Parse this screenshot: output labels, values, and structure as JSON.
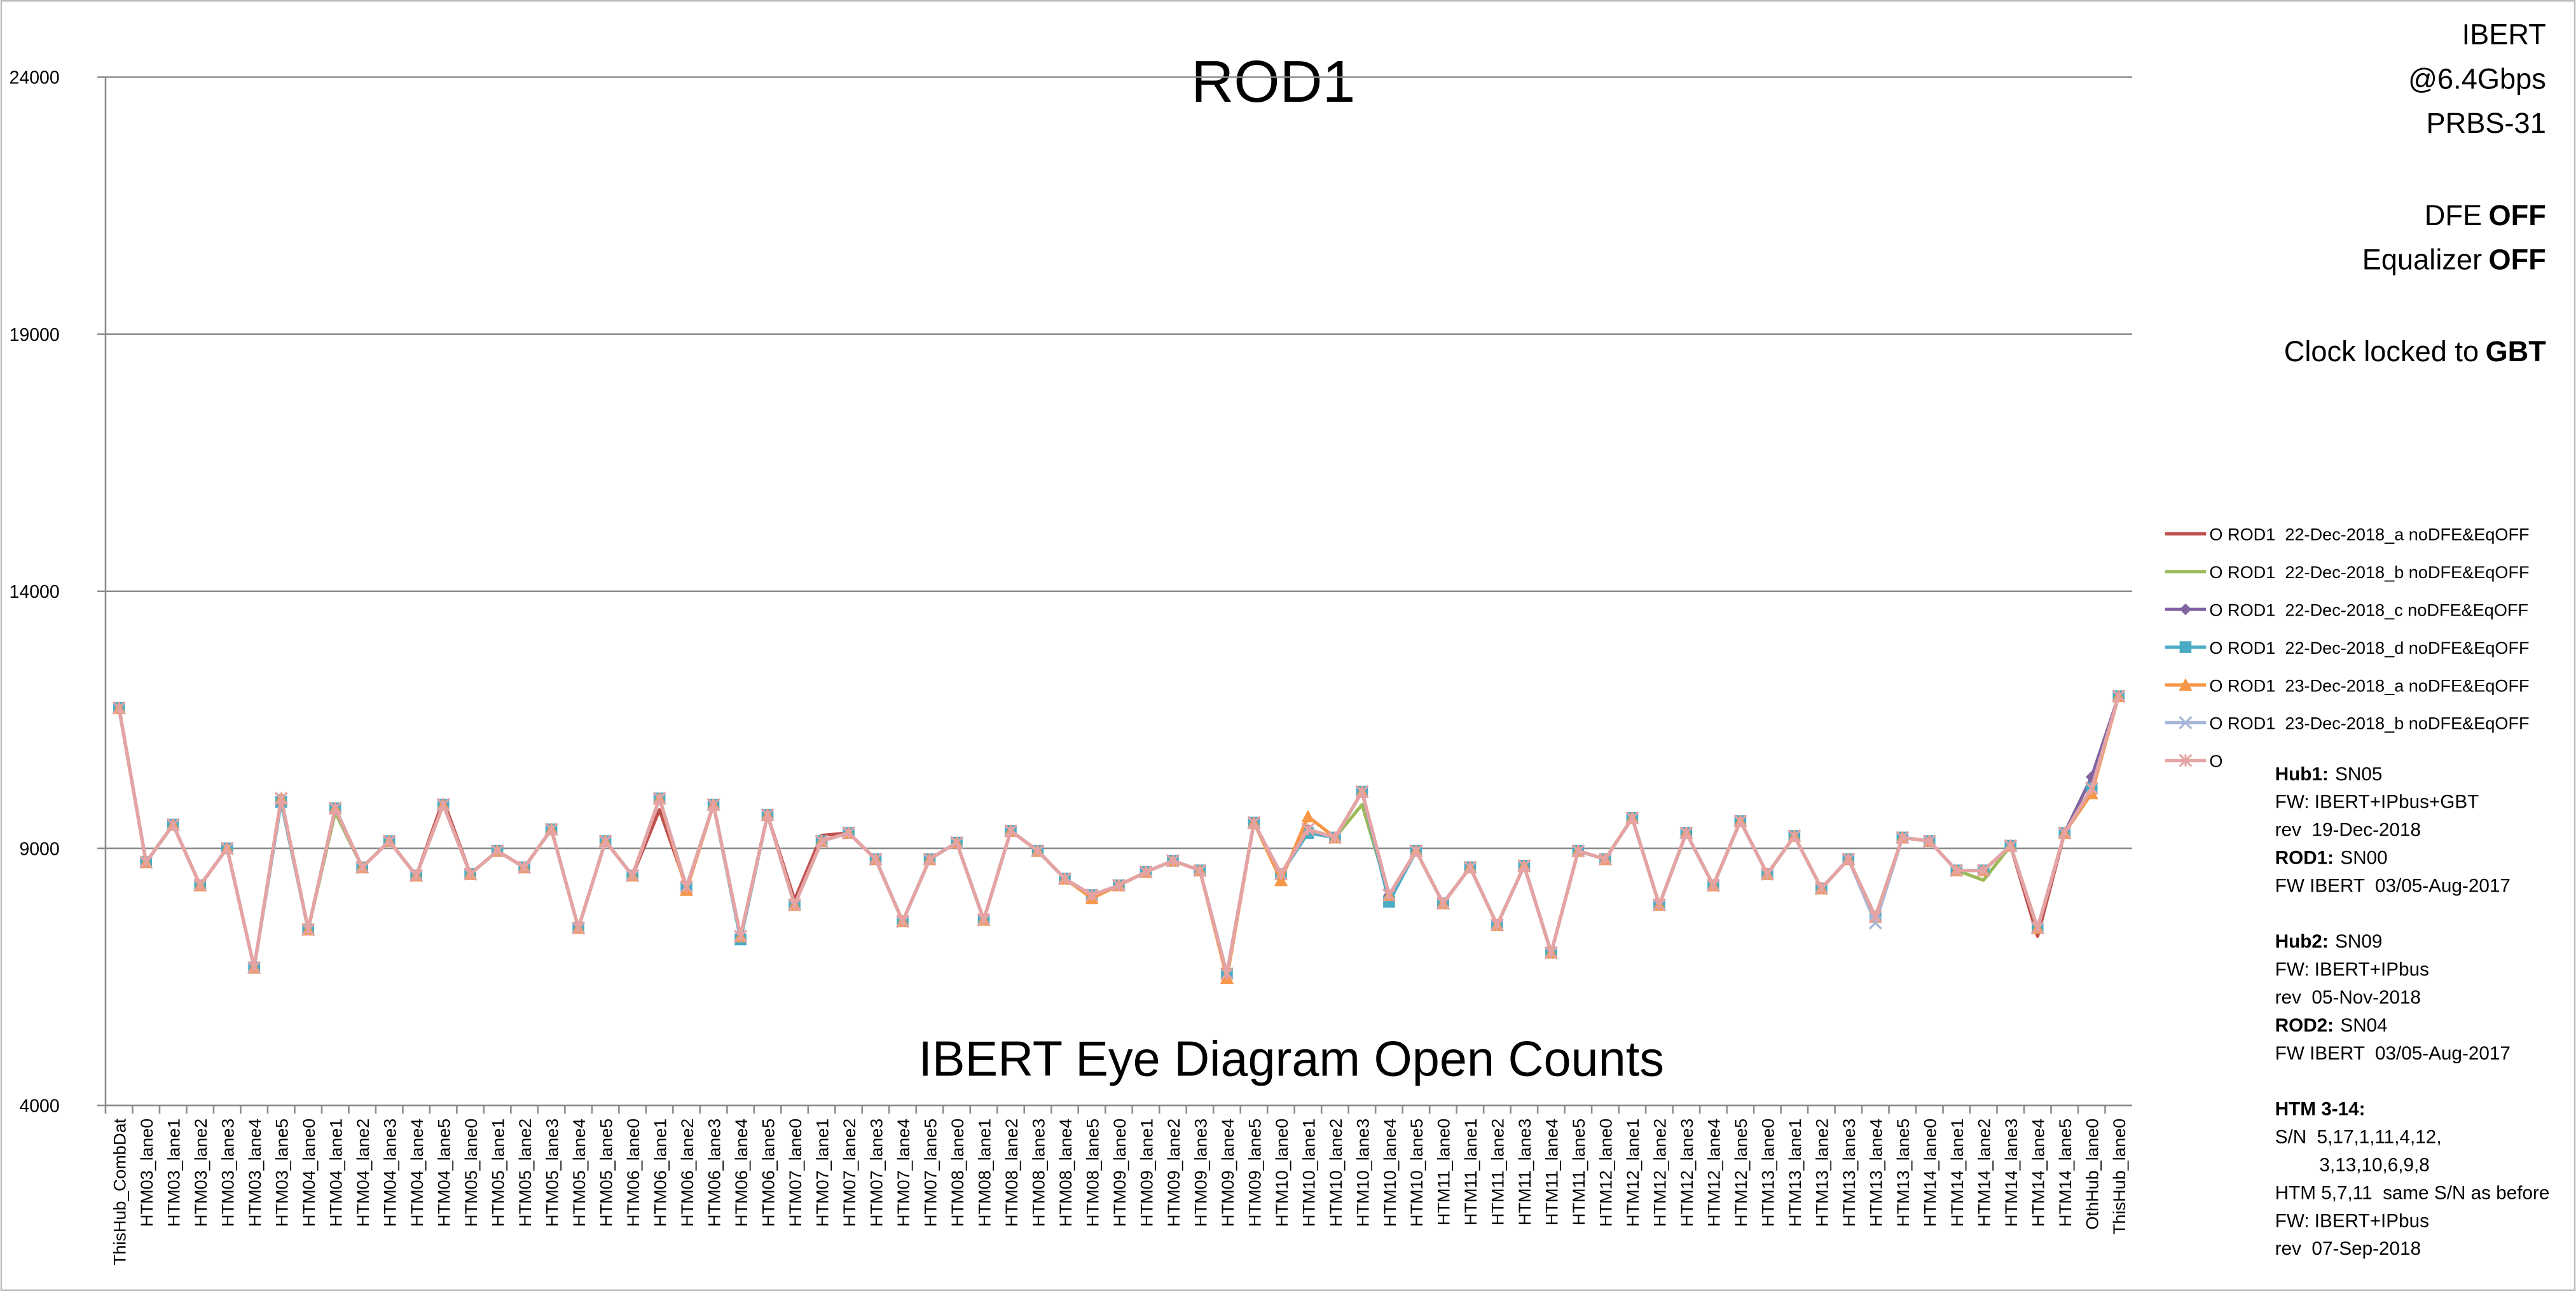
{
  "chart_data": {
    "type": "line",
    "title": "ROD1",
    "subtitle": "IBERT Eye Diagram Open Counts",
    "categories": [
      "ThisHub_CombDat",
      "HTM03_lane0",
      "HTM03_lane1",
      "HTM03_lane2",
      "HTM03_lane3",
      "HTM03_lane4",
      "HTM03_lane5",
      "HTM04_lane0",
      "HTM04_lane1",
      "HTM04_lane2",
      "HTM04_lane3",
      "HTM04_lane4",
      "HTM04_lane5",
      "HTM05_lane0",
      "HTM05_lane1",
      "HTM05_lane2",
      "HTM05_lane3",
      "HTM05_lane4",
      "HTM05_lane5",
      "HTM06_lane0",
      "HTM06_lane1",
      "HTM06_lane2",
      "HTM06_lane3",
      "HTM06_lane4",
      "HTM06_lane5",
      "HTM07_lane0",
      "HTM07_lane1",
      "HTM07_lane2",
      "HTM07_lane3",
      "HTM07_lane4",
      "HTM07_lane5",
      "HTM08_lane0",
      "HTM08_lane1",
      "HTM08_lane2",
      "HTM08_lane3",
      "HTM08_lane4",
      "HTM08_lane5",
      "HTM09_lane0",
      "HTM09_lane1",
      "HTM09_lane2",
      "HTM09_lane3",
      "HTM09_lane4",
      "HTM09_lane5",
      "HTM10_lane0",
      "HTM10_lane1",
      "HTM10_lane2",
      "HTM10_lane3",
      "HTM10_lane4",
      "HTM10_lane5",
      "HTM11_lane0",
      "HTM11_lane1",
      "HTM11_lane2",
      "HTM11_lane3",
      "HTM11_lane4",
      "HTM11_lane5",
      "HTM12_lane0",
      "HTM12_lane1",
      "HTM12_lane2",
      "HTM12_lane3",
      "HTM12_lane4",
      "HTM12_lane5",
      "HTM13_lane0",
      "HTM13_lane1",
      "HTM13_lane2",
      "HTM13_lane3",
      "HTM13_lane4",
      "HTM13_lane5",
      "HTM14_lane0",
      "HTM14_lane1",
      "HTM14_lane2",
      "HTM14_lane3",
      "HTM14_lane4",
      "HTM14_lane5",
      "OthHub_lane0",
      "ThisHub_lane0"
    ],
    "series": [
      {
        "name": "O ROD1  22-Dec-2018_a noDFE&EqOFF",
        "color": "#c0504d",
        "marker": "none",
        "values": [
          11730,
          8730,
          9460,
          8280,
          9000,
          6680,
          9970,
          7420,
          9780,
          8630,
          9140,
          8470,
          9940,
          8500,
          8950,
          8630,
          9370,
          7450,
          9140,
          8470,
          9750,
          8250,
          9850,
          7290,
          9650,
          8000,
          9250,
          9300,
          8790,
          7580,
          8790,
          9110,
          7610,
          9340,
          8950,
          8410,
          8090,
          8280,
          8540,
          8760,
          8570,
          6560,
          9500,
          8500,
          9370,
          9210,
          10100,
          8090,
          8950,
          7930,
          8630,
          7510,
          8660,
          6970,
          8950,
          8790,
          9590,
          7900,
          9300,
          8280,
          9530,
          8500,
          9240,
          8220,
          8790,
          7670,
          9210,
          9140,
          8570,
          8570,
          9050,
          7290,
          9300,
          10170,
          11960
        ]
      },
      {
        "name": "O ROD1  22-Dec-2018_b noDFE&EqOFF",
        "color": "#9bbb59",
        "marker": "none",
        "values": [
          11730,
          8730,
          9460,
          8280,
          9000,
          6680,
          9970,
          7420,
          9700,
          8630,
          9140,
          8470,
          9850,
          8500,
          8950,
          8630,
          9370,
          7450,
          9140,
          8470,
          9970,
          8250,
          9850,
          7290,
          9650,
          7900,
          9140,
          9300,
          8790,
          7580,
          8790,
          9110,
          7610,
          9340,
          8950,
          8410,
          8090,
          8280,
          8540,
          8760,
          8570,
          6560,
          9500,
          8500,
          9370,
          9210,
          9850,
          8090,
          8950,
          7930,
          8630,
          7510,
          8660,
          6970,
          8950,
          8790,
          9590,
          7900,
          9300,
          8280,
          9530,
          8500,
          9240,
          8220,
          8790,
          7670,
          9210,
          9140,
          8570,
          8380,
          9050,
          7450,
          9300,
          10170,
          11960
        ]
      },
      {
        "name": "O ROD1  22-Dec-2018_c noDFE&EqOFF",
        "color": "#8064a2",
        "marker": "diamond",
        "values": [
          11730,
          8730,
          9460,
          8280,
          9000,
          6680,
          9970,
          7420,
          9780,
          8630,
          9140,
          8470,
          9850,
          8500,
          8950,
          8630,
          9370,
          7450,
          9140,
          8470,
          9970,
          8250,
          9850,
          7290,
          9650,
          7900,
          9140,
          9300,
          8790,
          7580,
          8790,
          9110,
          7610,
          9340,
          8950,
          8410,
          8090,
          8280,
          8540,
          8760,
          8570,
          6560,
          9500,
          8500,
          9370,
          9210,
          10100,
          8090,
          8950,
          7930,
          8630,
          7510,
          8660,
          6970,
          8950,
          8790,
          9590,
          7900,
          9300,
          8280,
          9530,
          8500,
          9240,
          8220,
          8790,
          7670,
          9210,
          9140,
          8570,
          8570,
          9050,
          7450,
          9300,
          10390,
          11960
        ]
      },
      {
        "name": "O ROD1  22-Dec-2018_d noDFE&EqOFF",
        "color": "#4bacc6",
        "marker": "square",
        "values": [
          11730,
          8730,
          9460,
          8280,
          9000,
          6680,
          9900,
          7420,
          9780,
          8630,
          9140,
          8470,
          9850,
          8500,
          8950,
          8630,
          9370,
          7450,
          9140,
          8470,
          9970,
          8250,
          9850,
          7230,
          9650,
          7900,
          9140,
          9300,
          8790,
          7580,
          8790,
          9110,
          7610,
          9340,
          8950,
          8410,
          8090,
          8280,
          8540,
          8760,
          8570,
          6560,
          9500,
          8500,
          9300,
          9210,
          10100,
          7960,
          8950,
          7930,
          8630,
          7510,
          8660,
          6970,
          8950,
          8790,
          9590,
          7900,
          9300,
          8280,
          9530,
          8500,
          9240,
          8220,
          8790,
          7670,
          9210,
          9140,
          8570,
          8570,
          9050,
          7450,
          9300,
          10170,
          11960
        ]
      },
      {
        "name": "O ROD1  23-Dec-2018_a noDFE&EqOFF",
        "color": "#f79646",
        "marker": "triangle",
        "values": [
          11730,
          8730,
          9460,
          8280,
          9000,
          6680,
          9970,
          7420,
          9780,
          8630,
          9140,
          8470,
          9850,
          8500,
          8950,
          8630,
          9370,
          7450,
          9140,
          8470,
          9970,
          8190,
          9850,
          7290,
          9650,
          7900,
          9140,
          9300,
          8790,
          7580,
          8790,
          9110,
          7610,
          9340,
          8950,
          8410,
          8030,
          8280,
          8540,
          8760,
          8570,
          6480,
          9500,
          8380,
          9620,
          9210,
          10100,
          8090,
          8950,
          7930,
          8630,
          7510,
          8660,
          6970,
          8950,
          8790,
          9590,
          7900,
          9300,
          8280,
          9530,
          8500,
          9240,
          8220,
          8790,
          7670,
          9210,
          9140,
          8570,
          8570,
          9050,
          7450,
          9300,
          10070,
          11960
        ]
      },
      {
        "name": "O ROD1  23-Dec-2018_b noDFE&EqOFF",
        "color": "#a5b6d8",
        "marker": "x",
        "values": [
          11730,
          8730,
          9460,
          8280,
          9000,
          6680,
          9970,
          7420,
          9780,
          8630,
          9140,
          8470,
          9850,
          8500,
          8950,
          8630,
          9370,
          7450,
          9140,
          8470,
          9970,
          8250,
          9850,
          7290,
          9650,
          7900,
          9140,
          9300,
          8790,
          7580,
          8790,
          9110,
          7610,
          9340,
          8950,
          8410,
          8090,
          8280,
          8540,
          8760,
          8570,
          6560,
          9500,
          8500,
          9370,
          9210,
          10100,
          8090,
          8950,
          7930,
          8630,
          7510,
          8660,
          6970,
          8950,
          8790,
          9590,
          7900,
          9300,
          8280,
          9530,
          8500,
          9240,
          8220,
          8790,
          7550,
          9210,
          9140,
          8570,
          8570,
          9050,
          7450,
          9300,
          10170,
          11960
        ]
      },
      {
        "name": "O",
        "color": "#e6a3a3",
        "marker": "star",
        "values": [
          11730,
          8730,
          9460,
          8280,
          9000,
          6680,
          9970,
          7420,
          9780,
          8630,
          9140,
          8470,
          9850,
          8500,
          8950,
          8630,
          9370,
          7450,
          9140,
          8470,
          9970,
          8250,
          9850,
          7290,
          9650,
          7900,
          9140,
          9300,
          8790,
          7580,
          8790,
          9110,
          7610,
          9340,
          8950,
          8410,
          8090,
          8280,
          8540,
          8760,
          8570,
          6560,
          9500,
          8500,
          9370,
          9210,
          10100,
          8090,
          8950,
          7930,
          8630,
          7510,
          8660,
          6970,
          8950,
          8790,
          9590,
          7900,
          9300,
          8280,
          9530,
          8500,
          9240,
          8220,
          8790,
          7670,
          9210,
          9140,
          8570,
          8570,
          9050,
          7450,
          9300,
          10170,
          11960
        ]
      }
    ],
    "ylim": [
      4000,
      24000
    ],
    "yticks": [
      4000,
      9000,
      14000,
      19000,
      24000
    ],
    "grid": true,
    "legend": "right",
    "settings": [
      {
        "text": "IBERT"
      },
      {
        "text": "@6.4Gbps"
      },
      {
        "text": "PRBS-31"
      },
      {
        "text": "DFE",
        "bold": "OFF"
      },
      {
        "text": "Equalizer",
        "bold": "OFF"
      },
      {
        "text": "Clock locked to",
        "bold": "GBT"
      }
    ],
    "notes": [
      [
        {
          "bold": "Hub1:",
          "text": "SN05"
        },
        {
          "text": "FW: IBERT+IPbus+GBT"
        },
        {
          "text": "rev  19-Dec-2018"
        },
        {
          "bold": "ROD1:",
          "text": "SN00"
        },
        {
          "text": "FW IBERT  03/05-Aug-2017"
        }
      ],
      [
        {
          "bold": "Hub2:",
          "text": "SN09"
        },
        {
          "text": "FW: IBERT+IPbus"
        },
        {
          "text": "rev  05-Nov-2018"
        },
        {
          "bold": "ROD2:",
          "text": "SN04"
        },
        {
          "text": "FW IBERT  03/05-Aug-2017"
        }
      ],
      [
        {
          "bold": "HTM 3-14:"
        },
        {
          "text": "S/N  5,17,1,11,4,12,"
        },
        {
          "text": "3,13,10,6,9,8",
          "indent": true
        },
        {
          "text": "HTM 5,7,11  same S/N as before"
        },
        {
          "text": "FW: IBERT+IPbus"
        },
        {
          "text": "rev  07-Sep-2018"
        }
      ]
    ]
  }
}
